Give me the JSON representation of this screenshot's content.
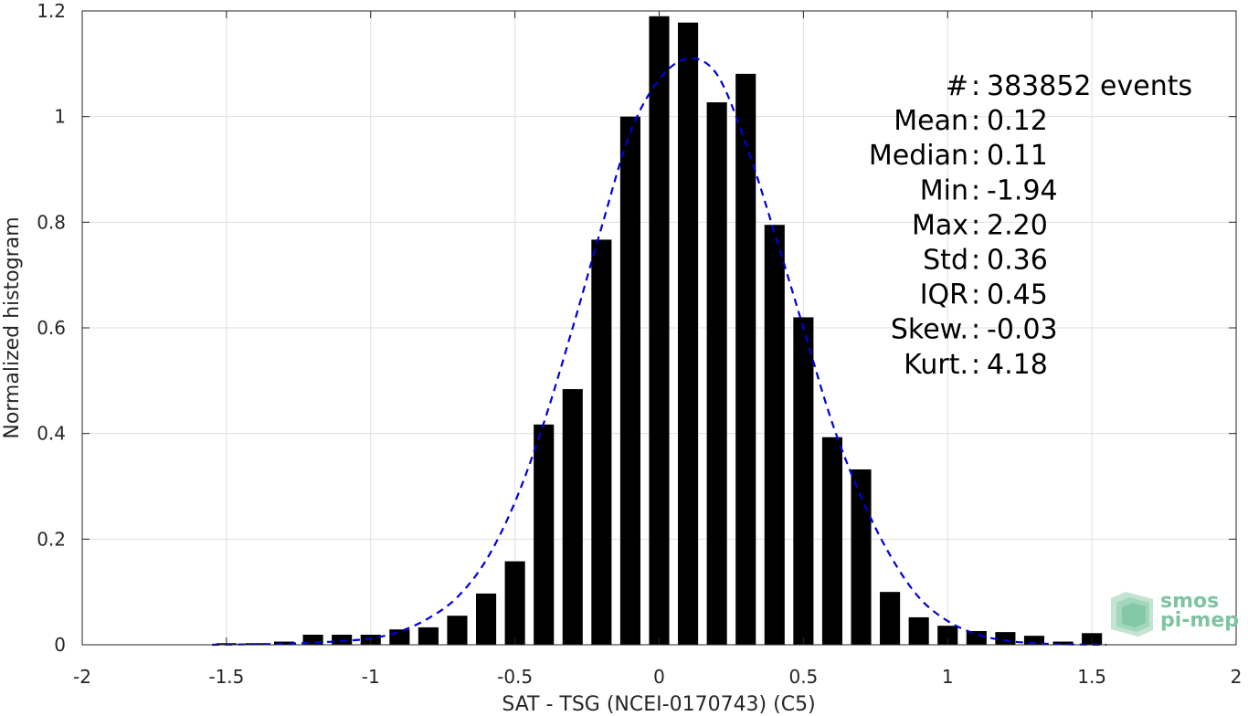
{
  "chart_data": {
    "type": "bar",
    "xlabel": "SAT - TSG (NCEI-0170743) (C5)",
    "ylabel": "Normalized histogram",
    "xlim": [
      -2,
      2
    ],
    "ylim": [
      0,
      1.2
    ],
    "x_ticks": [
      -2,
      -1.5,
      -1,
      -0.5,
      0,
      0.5,
      1,
      1.5,
      2
    ],
    "x_tick_labels": [
      "-2",
      "-1.5",
      "-1",
      "-0.5",
      "0",
      "0.5",
      "1",
      "1.5",
      "2"
    ],
    "y_ticks": [
      0,
      0.2,
      0.4,
      0.6,
      0.8,
      1,
      1.2
    ],
    "y_tick_labels": [
      "0",
      "0.2",
      "0.4",
      "0.6",
      "0.8",
      "1",
      "1.2"
    ],
    "grid": true,
    "bar_width": 0.07,
    "bar_color": "#000000",
    "bins": [
      {
        "x": -1.5,
        "y": 0.003
      },
      {
        "x": -1.4,
        "y": 0.003
      },
      {
        "x": -1.3,
        "y": 0.006
      },
      {
        "x": -1.2,
        "y": 0.019
      },
      {
        "x": -1.1,
        "y": 0.019
      },
      {
        "x": -1.0,
        "y": 0.019
      },
      {
        "x": -0.9,
        "y": 0.029
      },
      {
        "x": -0.8,
        "y": 0.033
      },
      {
        "x": -0.7,
        "y": 0.055
      },
      {
        "x": -0.6,
        "y": 0.097
      },
      {
        "x": -0.5,
        "y": 0.158
      },
      {
        "x": -0.4,
        "y": 0.417
      },
      {
        "x": -0.3,
        "y": 0.484
      },
      {
        "x": -0.2,
        "y": 0.767
      },
      {
        "x": -0.1,
        "y": 1.0
      },
      {
        "x": 0.0,
        "y": 1.19
      },
      {
        "x": 0.1,
        "y": 1.178
      },
      {
        "x": 0.2,
        "y": 1.027
      },
      {
        "x": 0.3,
        "y": 1.081
      },
      {
        "x": 0.4,
        "y": 0.795
      },
      {
        "x": 0.5,
        "y": 0.62
      },
      {
        "x": 0.6,
        "y": 0.393
      },
      {
        "x": 0.7,
        "y": 0.332
      },
      {
        "x": 0.8,
        "y": 0.1
      },
      {
        "x": 0.9,
        "y": 0.052
      },
      {
        "x": 1.0,
        "y": 0.036
      },
      {
        "x": 1.1,
        "y": 0.026
      },
      {
        "x": 1.2,
        "y": 0.024
      },
      {
        "x": 1.3,
        "y": 0.017
      },
      {
        "x": 1.4,
        "y": 0.006
      },
      {
        "x": 1.5,
        "y": 0.022
      }
    ],
    "fit_curve": {
      "style": "dashed",
      "color": "#0000dd",
      "points": [
        [
          -1.55,
          0.0
        ],
        [
          -1.4,
          0.001
        ],
        [
          -1.3,
          0.002
        ],
        [
          -1.2,
          0.004
        ],
        [
          -1.1,
          0.007
        ],
        [
          -1.0,
          0.012
        ],
        [
          -0.9,
          0.025
        ],
        [
          -0.8,
          0.05
        ],
        [
          -0.7,
          0.09
        ],
        [
          -0.6,
          0.16
        ],
        [
          -0.5,
          0.27
        ],
        [
          -0.4,
          0.42
        ],
        [
          -0.3,
          0.6
        ],
        [
          -0.2,
          0.79
        ],
        [
          -0.1,
          0.97
        ],
        [
          0.0,
          1.07
        ],
        [
          0.1,
          1.11
        ],
        [
          0.2,
          1.08
        ],
        [
          0.3,
          0.95
        ],
        [
          0.4,
          0.78
        ],
        [
          0.5,
          0.6
        ],
        [
          0.6,
          0.42
        ],
        [
          0.7,
          0.28
        ],
        [
          0.8,
          0.17
        ],
        [
          0.9,
          0.09
        ],
        [
          1.0,
          0.045
        ],
        [
          1.1,
          0.02
        ],
        [
          1.2,
          0.008
        ],
        [
          1.3,
          0.003
        ],
        [
          1.4,
          0.001
        ],
        [
          1.55,
          0.0
        ]
      ]
    },
    "stats": [
      {
        "label": "#  ",
        "value": "383852 events"
      },
      {
        "label": "Mean",
        "value": "0.12"
      },
      {
        "label": "Median",
        "value": "0.11"
      },
      {
        "label": "Min",
        "value": "-1.94"
      },
      {
        "label": "Max",
        "value": "2.20"
      },
      {
        "label": "Std",
        "value": "0.36"
      },
      {
        "label": "IQR",
        "value": "0.45"
      },
      {
        "label": "Skew.",
        "value": "-0.03"
      },
      {
        "label": "Kurt.",
        "value": "4.18"
      }
    ]
  },
  "logo": {
    "line1": "smos",
    "line2": "pi-mep",
    "color": "#7fc4a0"
  }
}
